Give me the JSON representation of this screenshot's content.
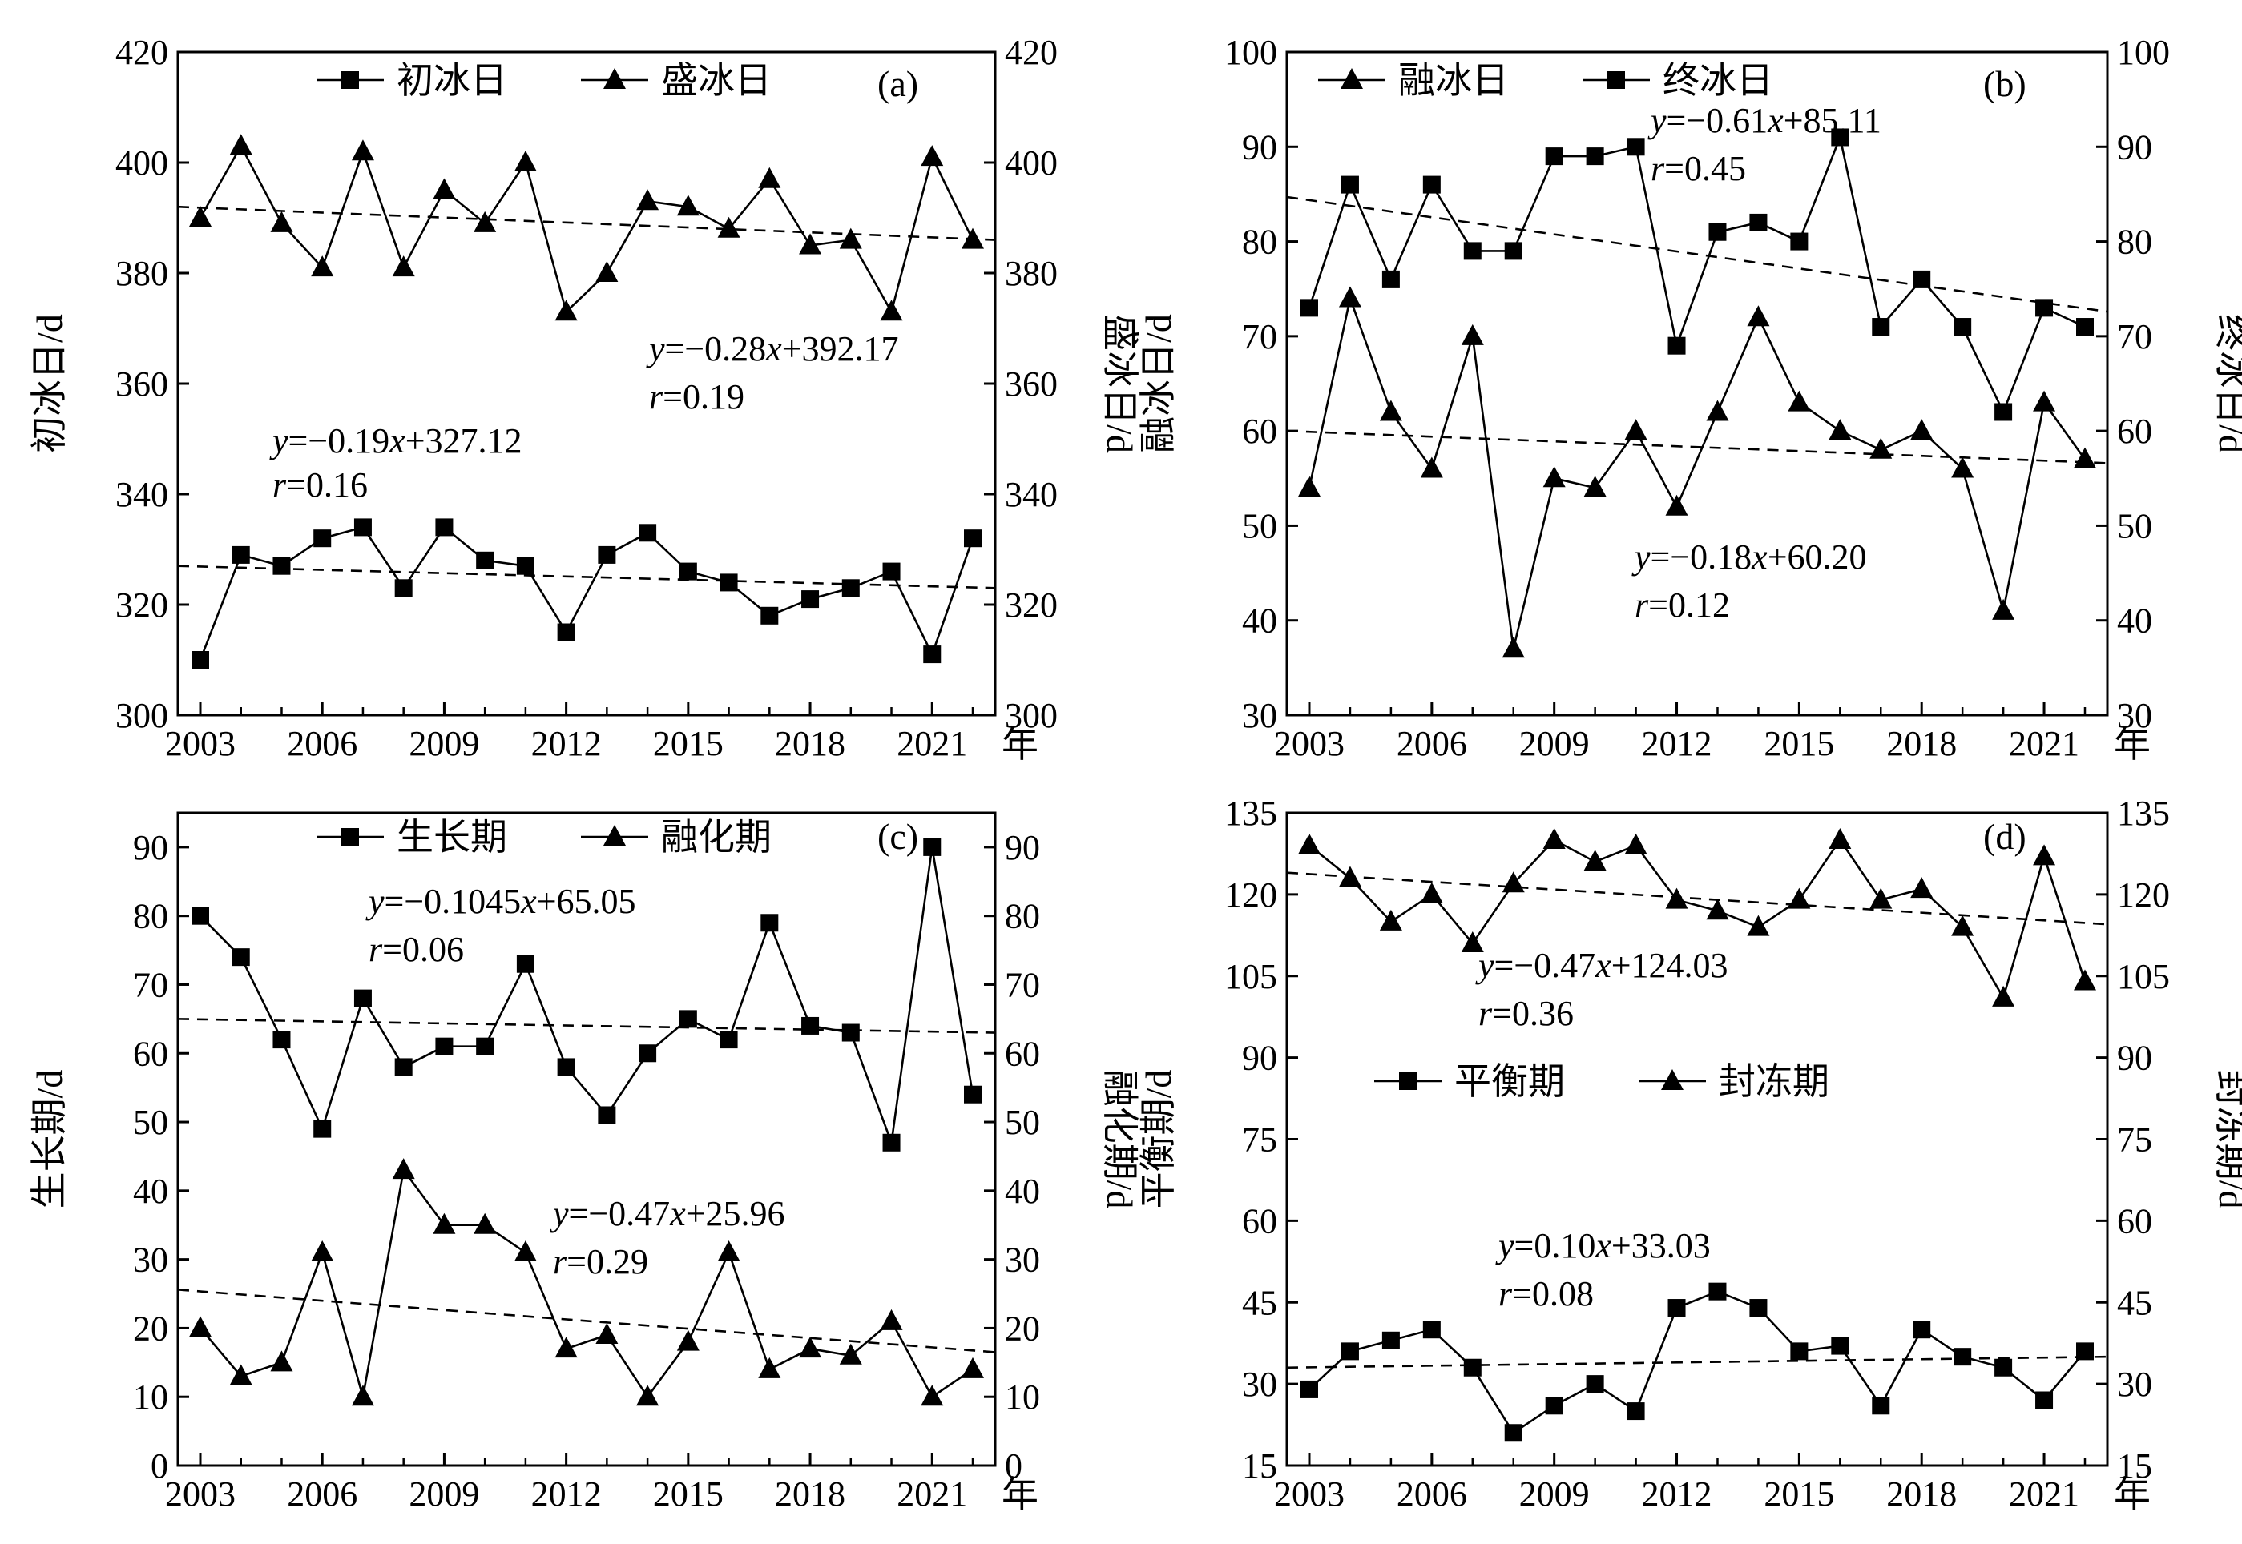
{
  "chart_data": [
    {
      "type": "line",
      "panel_label": "(a)",
      "x": [
        2003,
        2004,
        2005,
        2006,
        2007,
        2008,
        2009,
        2010,
        2011,
        2012,
        2013,
        2014,
        2015,
        2016,
        2017,
        2018,
        2019,
        2020,
        2021,
        2022
      ],
      "x_ticks": [
        "2003",
        "2006",
        "2009",
        "2012",
        "2015",
        "2018",
        "2021"
      ],
      "x_unit": "年",
      "left_ylabel": "初冰日/d",
      "right_ylabel": "盛冰日/d",
      "ylim": [
        300,
        420
      ],
      "yticks": [
        300,
        320,
        340,
        360,
        380,
        400,
        420
      ],
      "series": [
        {
          "name": "初冰日",
          "marker": "square",
          "values": [
            310,
            329,
            327,
            332,
            334,
            323,
            334,
            328,
            327,
            315,
            329,
            333,
            326,
            324,
            318,
            321,
            323,
            326,
            311,
            332
          ]
        },
        {
          "name": "盛冰日",
          "marker": "triangle",
          "values": [
            390,
            403,
            389,
            381,
            402,
            381,
            395,
            389,
            400,
            373,
            380,
            393,
            392,
            388,
            397,
            385,
            386,
            373,
            401,
            386
          ]
        }
      ],
      "trendlines": [
        {
          "series": "初冰日",
          "equation": [
            "y",
            "=−0.19",
            "x",
            "+327.12"
          ],
          "r": [
            "r",
            "=0.16"
          ],
          "y_start": 327,
          "y_end": 323
        },
        {
          "series": "盛冰日",
          "equation": [
            "y",
            "=−0.28",
            "x",
            "+392.17"
          ],
          "r": [
            "r",
            "=0.19"
          ],
          "y_start": 392,
          "y_end": 386
        }
      ]
    },
    {
      "type": "line",
      "panel_label": "(b)",
      "x": [
        2003,
        2004,
        2005,
        2006,
        2007,
        2008,
        2009,
        2010,
        2011,
        2012,
        2013,
        2014,
        2015,
        2016,
        2017,
        2018,
        2019,
        2020,
        2021,
        2022
      ],
      "x_ticks": [
        "2003",
        "2006",
        "2009",
        "2012",
        "2015",
        "2018",
        "2021"
      ],
      "x_unit": "年",
      "left_ylabel": "融冰日/d",
      "right_ylabel": "终冰日/d",
      "ylim": [
        30,
        100
      ],
      "yticks": [
        30,
        40,
        50,
        60,
        70,
        80,
        90,
        100
      ],
      "series": [
        {
          "name": "融冰日",
          "marker": "triangle",
          "values": [
            54,
            74,
            62,
            56,
            70,
            37,
            55,
            54,
            60,
            52,
            62,
            72,
            63,
            60,
            58,
            60,
            56,
            41,
            63,
            57
          ]
        },
        {
          "name": "终冰日",
          "marker": "square",
          "values": [
            73,
            86,
            76,
            86,
            79,
            79,
            89,
            89,
            90,
            69,
            81,
            82,
            80,
            91,
            71,
            76,
            71,
            62,
            73,
            71
          ]
        }
      ],
      "trendlines": [
        {
          "series": "终冰日",
          "equation": [
            "y",
            "=−0.61",
            "x",
            "+85.11"
          ],
          "r": [
            "r",
            "=0.45"
          ],
          "y_start": 84.7,
          "y_end": 72.6
        },
        {
          "series": "融冰日",
          "equation": [
            "y",
            "=−0.18",
            "x",
            "+60.20"
          ],
          "r": [
            "r",
            "=0.12"
          ],
          "y_start": 60.0,
          "y_end": 56.6
        }
      ]
    },
    {
      "type": "line",
      "panel_label": "(c)",
      "x": [
        2003,
        2004,
        2005,
        2006,
        2007,
        2008,
        2009,
        2010,
        2011,
        2012,
        2013,
        2014,
        2015,
        2016,
        2017,
        2018,
        2019,
        2020,
        2021,
        2022
      ],
      "x_ticks": [
        "2003",
        "2006",
        "2009",
        "2012",
        "2015",
        "2018",
        "2021"
      ],
      "x_unit": "年",
      "left_ylabel": "生长期/d",
      "right_ylabel": "融化期/d",
      "ylim": [
        0,
        95
      ],
      "yticks": [
        0,
        10,
        20,
        30,
        40,
        50,
        60,
        70,
        80,
        90
      ],
      "series": [
        {
          "name": "生长期",
          "marker": "square",
          "values": [
            80,
            74,
            62,
            49,
            68,
            58,
            61,
            61,
            73,
            58,
            51,
            60,
            65,
            62,
            79,
            64,
            63,
            47,
            90,
            54
          ]
        },
        {
          "name": "融化期",
          "marker": "triangle",
          "values": [
            20,
            13,
            15,
            31,
            10,
            43,
            35,
            35,
            31,
            17,
            19,
            10,
            18,
            31,
            14,
            17,
            16,
            21,
            10,
            14
          ]
        }
      ],
      "trendlines": [
        {
          "series": "生长期",
          "equation": [
            "y",
            "=−0.1045",
            "x",
            "+65.05"
          ],
          "r": [
            "r",
            "=0.06"
          ],
          "y_start": 65,
          "y_end": 63
        },
        {
          "series": "融化期",
          "equation": [
            "y",
            "=−0.47",
            "x",
            "+25.96"
          ],
          "r": [
            "r",
            "=0.29"
          ],
          "y_start": 25.6,
          "y_end": 16.5
        }
      ]
    },
    {
      "type": "line",
      "panel_label": "(d)",
      "x": [
        2003,
        2004,
        2005,
        2006,
        2007,
        2008,
        2009,
        2010,
        2011,
        2012,
        2013,
        2014,
        2015,
        2016,
        2017,
        2018,
        2019,
        2020,
        2021,
        2022
      ],
      "x_ticks": [
        "2003",
        "2006",
        "2009",
        "2012",
        "2015",
        "2018",
        "2021"
      ],
      "x_unit": "年",
      "left_ylabel": "平衡期/d",
      "right_ylabel": "封冻期/d",
      "ylim": [
        15,
        135
      ],
      "yticks": [
        15,
        30,
        45,
        60,
        75,
        90,
        105,
        120,
        135
      ],
      "series": [
        {
          "name": "平衡期",
          "marker": "square",
          "values": [
            29,
            36,
            38,
            40,
            33,
            21,
            26,
            30,
            25,
            44,
            47,
            44,
            36,
            37,
            26,
            40,
            35,
            33,
            27,
            36
          ]
        },
        {
          "name": "封冻期",
          "marker": "triangle",
          "values": [
            129,
            123,
            115,
            120,
            111,
            122,
            130,
            126,
            129,
            119,
            117,
            114,
            119,
            130,
            119,
            121,
            114,
            101,
            127,
            104
          ]
        }
      ],
      "trendlines": [
        {
          "series": "封冻期",
          "equation": [
            "y",
            "=−0.47",
            "x",
            "+124.03"
          ],
          "r": [
            "r",
            "=0.36"
          ],
          "y_start": 124,
          "y_end": 114.5
        },
        {
          "series": "平衡期",
          "equation": [
            "y",
            "=0.10",
            "x",
            "+33.03"
          ],
          "r": [
            "r",
            "=0.08"
          ],
          "y_start": 33,
          "y_end": 35
        }
      ]
    }
  ]
}
